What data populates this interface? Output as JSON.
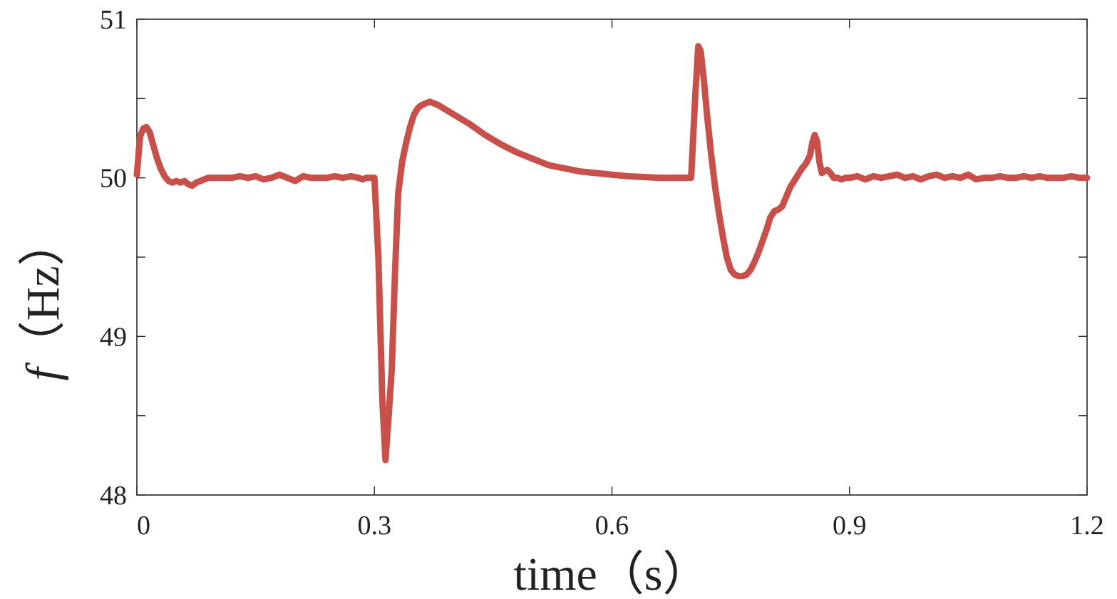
{
  "chart_data": {
    "type": "line",
    "xlabel": "time（s）",
    "ylabel_symbol": "f",
    "ylabel_unit": "（Hz）",
    "xlim": [
      0,
      1.2
    ],
    "ylim": [
      48,
      51
    ],
    "x_ticks": [
      0,
      0.3,
      0.6,
      0.9,
      1.2
    ],
    "x_tick_labels": [
      "0",
      "0.3",
      "0.6",
      "0.9",
      "1.2"
    ],
    "y_ticks": [
      48,
      48.5,
      49,
      49.5,
      50,
      50.5,
      51
    ],
    "y_tick_labels": [
      "48",
      "",
      "49",
      "",
      "50",
      "",
      "51"
    ],
    "grid": false,
    "series": [
      {
        "color": "#c8504a",
        "x": [
          0,
          0.004,
          0.008,
          0.012,
          0.016,
          0.02,
          0.025,
          0.03,
          0.035,
          0.04,
          0.045,
          0.05,
          0.055,
          0.06,
          0.065,
          0.07,
          0.075,
          0.08,
          0.085,
          0.09,
          0.095,
          0.1,
          0.11,
          0.12,
          0.13,
          0.14,
          0.15,
          0.16,
          0.17,
          0.18,
          0.19,
          0.2,
          0.21,
          0.22,
          0.23,
          0.24,
          0.25,
          0.26,
          0.27,
          0.28,
          0.285,
          0.29,
          0.295,
          0.3,
          0.305,
          0.31,
          0.314,
          0.318,
          0.322,
          0.326,
          0.33,
          0.335,
          0.34,
          0.345,
          0.35,
          0.355,
          0.36,
          0.365,
          0.37,
          0.375,
          0.38,
          0.39,
          0.4,
          0.42,
          0.44,
          0.46,
          0.48,
          0.5,
          0.52,
          0.54,
          0.56,
          0.58,
          0.6,
          0.62,
          0.64,
          0.66,
          0.68,
          0.7,
          0.705,
          0.709,
          0.712,
          0.716,
          0.72,
          0.725,
          0.73,
          0.735,
          0.74,
          0.745,
          0.75,
          0.755,
          0.76,
          0.765,
          0.77,
          0.775,
          0.78,
          0.785,
          0.79,
          0.795,
          0.8,
          0.805,
          0.81,
          0.815,
          0.82,
          0.825,
          0.83,
          0.835,
          0.84,
          0.845,
          0.85,
          0.853,
          0.856,
          0.859,
          0.862,
          0.865,
          0.868,
          0.872,
          0.876,
          0.88,
          0.885,
          0.89,
          0.895,
          0.9,
          0.91,
          0.92,
          0.93,
          0.94,
          0.95,
          0.96,
          0.97,
          0.98,
          0.99,
          1.0,
          1.01,
          1.02,
          1.03,
          1.04,
          1.05,
          1.06,
          1.07,
          1.08,
          1.09,
          1.1,
          1.11,
          1.12,
          1.13,
          1.14,
          1.15,
          1.16,
          1.17,
          1.18,
          1.19,
          1.2
        ],
        "values": [
          50.02,
          50.26,
          50.31,
          50.32,
          50.29,
          50.22,
          50.13,
          50.06,
          50.01,
          49.98,
          49.97,
          49.98,
          49.97,
          49.98,
          49.96,
          49.95,
          49.97,
          49.98,
          49.99,
          50.0,
          50.0,
          50.0,
          50.0,
          50.0,
          50.01,
          50.0,
          50.01,
          49.99,
          50.0,
          50.02,
          50.0,
          49.98,
          50.01,
          50.0,
          50.0,
          50.0,
          50.01,
          50.0,
          50.01,
          50.0,
          49.99,
          50.0,
          50.0,
          50.0,
          49.5,
          48.6,
          48.22,
          48.5,
          48.8,
          49.4,
          49.9,
          50.1,
          50.22,
          50.32,
          50.4,
          50.44,
          50.46,
          50.47,
          50.48,
          50.47,
          50.46,
          50.43,
          50.4,
          50.34,
          50.27,
          50.21,
          50.16,
          50.12,
          50.08,
          50.06,
          50.04,
          50.03,
          50.02,
          50.01,
          50.005,
          50.0,
          50.0,
          50.0,
          50.5,
          50.83,
          50.8,
          50.62,
          50.4,
          50.16,
          49.95,
          49.78,
          49.63,
          49.5,
          49.42,
          49.39,
          49.38,
          49.38,
          49.39,
          49.42,
          49.47,
          49.53,
          49.6,
          49.67,
          49.75,
          49.79,
          49.8,
          49.82,
          49.88,
          49.94,
          49.98,
          50.02,
          50.06,
          50.09,
          50.14,
          50.22,
          50.27,
          50.23,
          50.1,
          50.03,
          50.04,
          50.05,
          50.03,
          50.0,
          50.0,
          49.99,
          50.0,
          50.0,
          50.01,
          49.99,
          50.01,
          50.0,
          50.01,
          50.02,
          50.0,
          50.01,
          49.99,
          50.01,
          50.02,
          50.0,
          50.01,
          50.0,
          50.02,
          49.99,
          50.0,
          50.0,
          50.01,
          50.0,
          50.0,
          50.01,
          50.0,
          50.01,
          50.0,
          50.0,
          50.0,
          50.01,
          50.0,
          50.0
        ]
      }
    ]
  }
}
